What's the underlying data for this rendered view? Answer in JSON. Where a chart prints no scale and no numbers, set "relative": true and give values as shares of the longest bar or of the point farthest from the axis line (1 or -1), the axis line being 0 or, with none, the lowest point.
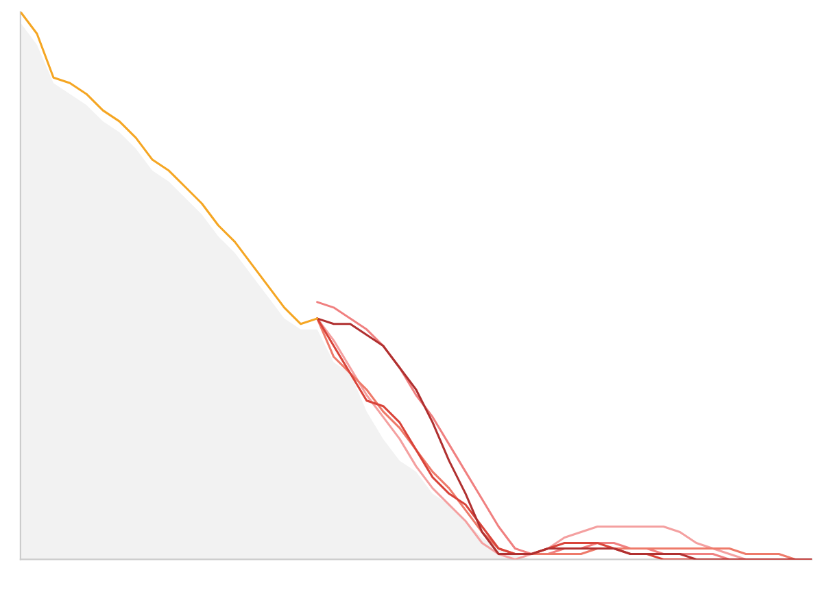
{
  "chart_data": {
    "type": "line",
    "relative": true,
    "marker": "none",
    "line_style": "solid",
    "categories": [
      null,
      null,
      null,
      null,
      null,
      null,
      null,
      null,
      null,
      null,
      null,
      null,
      null,
      null,
      null,
      null,
      null,
      null,
      null,
      null,
      null,
      null,
      null,
      null,
      null,
      null,
      null,
      null,
      null,
      null,
      null,
      null,
      null,
      null,
      null,
      null,
      null,
      null,
      null,
      null,
      null,
      null,
      null,
      null,
      null,
      null,
      null,
      null,
      null
    ],
    "series": [
      {
        "type": "area",
        "color": "#f2f2f2",
        "values": [
          0.98,
          0.94,
          0.87,
          0.85,
          0.83,
          0.8,
          0.78,
          0.75,
          0.71,
          0.69,
          0.66,
          0.63,
          0.59,
          0.56,
          0.52,
          0.48,
          0.44,
          0.42,
          0.42,
          0.36,
          0.34,
          0.27,
          0.22,
          0.18,
          0.16,
          0.12,
          0.1,
          0.07,
          0.04,
          0.02,
          0.01,
          0,
          null,
          null,
          null,
          null,
          null,
          null,
          null,
          null,
          null,
          null,
          null,
          null,
          null,
          null,
          null,
          null,
          null
        ]
      },
      {
        "color": "#f08080",
        "values": [
          null,
          null,
          null,
          null,
          null,
          null,
          null,
          null,
          null,
          null,
          null,
          null,
          null,
          null,
          null,
          null,
          null,
          null,
          0.47,
          0.46,
          0.44,
          0.42,
          0.39,
          0.35,
          0.3,
          0.26,
          0.21,
          0.16,
          0.11,
          0.06,
          0.02,
          0.01,
          0.01,
          0.02,
          0.02,
          0.03,
          0.03,
          0.02,
          0.02,
          0.01,
          0.01,
          0.01,
          0.01,
          0,
          0,
          0,
          0,
          0,
          0
        ]
      },
      {
        "color": "#f4a0a0",
        "values": [
          null,
          null,
          null,
          null,
          null,
          null,
          null,
          null,
          null,
          null,
          null,
          null,
          null,
          null,
          null,
          null,
          null,
          null,
          0.44,
          0.4,
          0.35,
          0.3,
          0.26,
          0.22,
          0.17,
          0.13,
          0.1,
          0.07,
          0.03,
          0.01,
          0,
          0.01,
          0.02,
          0.04,
          0.05,
          0.06,
          0.06,
          0.06,
          0.06,
          0.06,
          0.05,
          0.03,
          0.02,
          0.01,
          0,
          0,
          0,
          0,
          0
        ]
      },
      {
        "color": "#ee7a6a",
        "values": [
          null,
          null,
          null,
          null,
          null,
          null,
          null,
          null,
          null,
          null,
          null,
          null,
          null,
          null,
          null,
          null,
          null,
          null,
          0.44,
          0.37,
          0.34,
          0.31,
          0.27,
          0.24,
          0.2,
          0.16,
          0.13,
          0.09,
          0.05,
          0.02,
          0.01,
          0.01,
          0.01,
          0.01,
          0.01,
          0.02,
          0.02,
          0.02,
          0.02,
          0.02,
          0.02,
          0.02,
          0.02,
          0.02,
          0.01,
          0.01,
          0.01,
          0,
          0
        ]
      },
      {
        "color": "#d9443a",
        "values": [
          null,
          null,
          null,
          null,
          null,
          null,
          null,
          null,
          null,
          null,
          null,
          null,
          null,
          null,
          null,
          null,
          null,
          null,
          0.44,
          0.39,
          0.34,
          0.29,
          0.28,
          0.25,
          0.2,
          0.15,
          0.12,
          0.1,
          0.06,
          0.02,
          0.01,
          0.01,
          0.02,
          0.03,
          0.03,
          0.03,
          0.02,
          0.01,
          0.01,
          0,
          0,
          0,
          0,
          0,
          0,
          0,
          0,
          0,
          0
        ]
      },
      {
        "color": "#b03030",
        "values": [
          null,
          null,
          null,
          null,
          null,
          null,
          null,
          null,
          null,
          null,
          null,
          null,
          null,
          null,
          null,
          null,
          null,
          null,
          0.44,
          0.43,
          0.43,
          0.41,
          0.39,
          0.35,
          0.31,
          0.25,
          0.18,
          0.12,
          0.05,
          0.01,
          0.01,
          0.01,
          0.02,
          0.02,
          0.02,
          0.02,
          0.02,
          0.01,
          0.01,
          0.01,
          0.01,
          0,
          0,
          0,
          0,
          0,
          0,
          0,
          0
        ]
      },
      {
        "color": "#f5a623",
        "values": [
          1.0,
          0.96,
          0.88,
          0.87,
          0.85,
          0.82,
          0.8,
          0.77,
          0.73,
          0.71,
          0.68,
          0.65,
          0.61,
          0.58,
          0.54,
          0.5,
          0.46,
          0.43,
          0.44,
          null,
          null,
          null,
          null,
          null,
          null,
          null,
          null,
          null,
          null,
          null,
          null,
          null,
          null,
          null,
          null,
          null,
          null,
          null,
          null,
          null,
          null,
          null,
          null,
          null,
          null,
          null,
          null,
          null,
          null
        ]
      }
    ]
  }
}
